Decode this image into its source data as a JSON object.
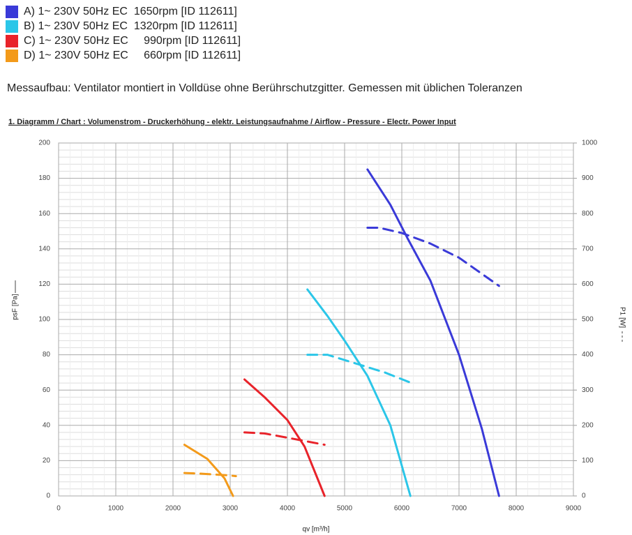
{
  "chart_data": {
    "type": "line",
    "note": "Messaufbau: Ventilator montiert in Volldüse ohne Berührschutzgitter. Gemessen mit üblichen  Toleranzen",
    "title": "1. Diagramm / Chart :   Volumenstrom - Druckerhöhung - elektr. Leistungsaufnahme / Airflow - Pressure - Electr. Power Input",
    "xlabel": "qv [m³/h]",
    "ylabel": "psF [Pa]",
    "y2label": "P1 [W]",
    "xlim": [
      0,
      9000
    ],
    "xticks": [
      0,
      1000,
      2000,
      3000,
      4000,
      5000,
      6000,
      7000,
      8000,
      9000
    ],
    "ylim": [
      0,
      200
    ],
    "yticks": [
      0,
      20,
      40,
      60,
      80,
      100,
      120,
      140,
      160,
      180,
      200
    ],
    "y2lim": [
      0,
      1000
    ],
    "y2ticks": [
      0,
      100,
      200,
      300,
      400,
      500,
      600,
      700,
      800,
      900,
      1000
    ],
    "grid": true,
    "series": [
      {
        "name": "A) 1~ 230V 50Hz EC  1650rpm [ID 112611]",
        "color": "#3a3ad8",
        "x": [
          5400,
          5800,
          6100,
          6500,
          7000,
          7400,
          7700
        ],
        "values": [
          185,
          165,
          146,
          122,
          80,
          38,
          0
        ]
      },
      {
        "name": "B) 1~ 230V 50Hz EC  1320rpm [ID 112611]",
        "color": "#2bc6e8",
        "x": [
          4350,
          4700,
          5000,
          5400,
          5800,
          6150
        ],
        "values": [
          117,
          102,
          88,
          68,
          40,
          0
        ]
      },
      {
        "name": "C) 1~ 230V 50Hz EC     990rpm [ID 112611]",
        "color": "#e8232a",
        "x": [
          3250,
          3600,
          4000,
          4300,
          4650
        ],
        "values": [
          66,
          56,
          43,
          28,
          0
        ]
      },
      {
        "name": "D) 1~ 230V 50Hz EC     660rpm [ID 112611]",
        "color": "#f39a1a",
        "x": [
          2200,
          2600,
          2900,
          3050
        ],
        "values": [
          29,
          21,
          10,
          0
        ]
      }
    ],
    "power_series": [
      {
        "axis": "y2",
        "color": "#3a3ad8",
        "x": [
          5400,
          5600,
          6000,
          6500,
          7000,
          7700
        ],
        "values": [
          760,
          760,
          745,
          715,
          675,
          595
        ]
      },
      {
        "axis": "y2",
        "color": "#2bc6e8",
        "x": [
          4350,
          4700,
          5200,
          5700,
          6200
        ],
        "values": [
          400,
          400,
          375,
          350,
          318
        ]
      },
      {
        "axis": "y2",
        "color": "#e8232a",
        "x": [
          3250,
          3600,
          4000,
          4650
        ],
        "values": [
          180,
          177,
          165,
          145
        ]
      },
      {
        "axis": "y2",
        "color": "#f39a1a",
        "x": [
          2200,
          2500,
          3000,
          3100
        ],
        "values": [
          65,
          63,
          58,
          56
        ]
      }
    ]
  }
}
